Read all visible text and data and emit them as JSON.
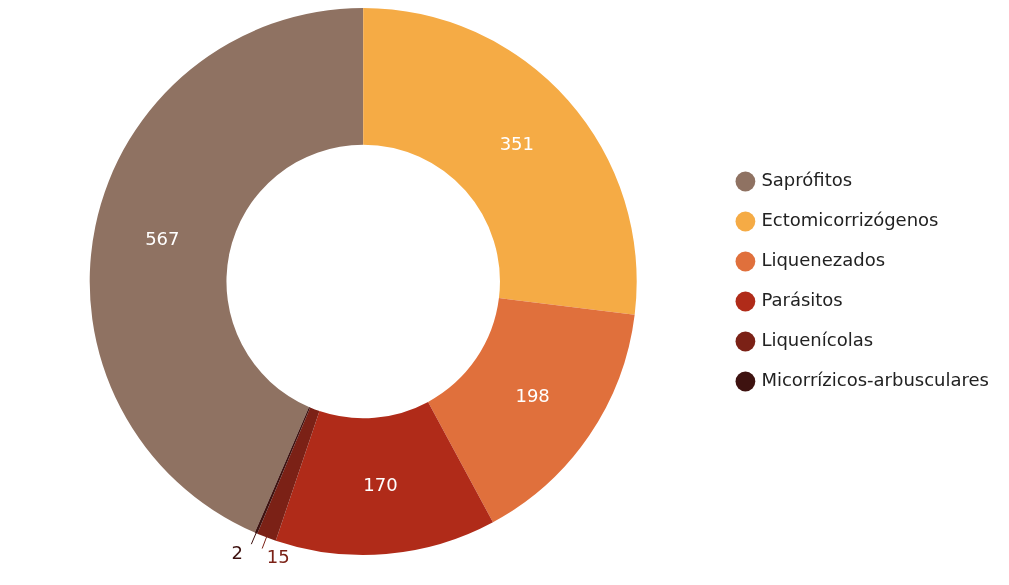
{
  "chart_data": {
    "type": "donut",
    "categories": [
      "Saprófitos",
      "Ectomicorrizógenos",
      "Liquenezados",
      "Parásitos",
      "Liquenícolas",
      "Micorrízicos-arbusculares"
    ],
    "values": [
      567,
      351,
      198,
      170,
      15,
      2
    ],
    "colors": [
      "#8f7262",
      "#f5ab45",
      "#e0703c",
      "#b02b19",
      "#7b2116",
      "#3e1210"
    ],
    "data_labels": true,
    "legend": "right"
  }
}
